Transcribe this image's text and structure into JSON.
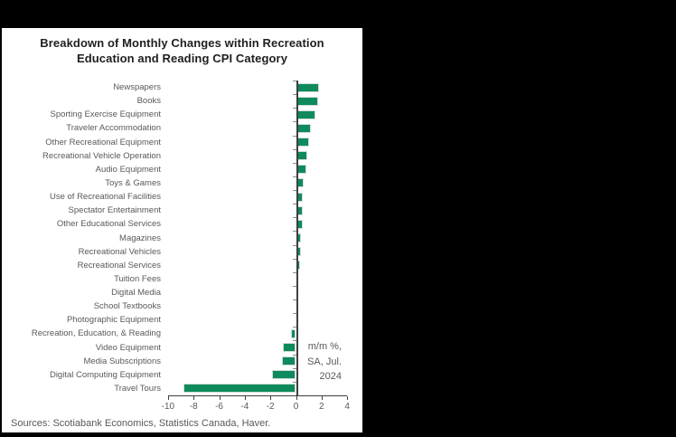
{
  "window": {
    "background_color": "#000000",
    "panel_color": "#ffffff"
  },
  "title": {
    "line1": "Breakdown of Monthly Changes within Recreation",
    "line2": "Education and Reading CPI Category"
  },
  "annotation": {
    "line1": "m/m %,",
    "line2": "SA, Jul.",
    "line3": "2024"
  },
  "source": "Sources: Scotiabank Economics, Statistics Canada, Haver.",
  "colors": {
    "bar": "#0f8a5c",
    "axis": "#3f3f3f",
    "boundary_tick": "#8c8c8c",
    "label_text": "#595959",
    "title_text": "#1f1f1f"
  },
  "chart_data": {
    "type": "bar",
    "orientation": "horizontal",
    "title": "Breakdown of Monthly Changes within Recreation Education and Reading CPI Category",
    "unit_note": "m/m %, SA, Jul. 2024",
    "xlabel": "",
    "ylabel": "",
    "xlim": [
      -10,
      4
    ],
    "xticks": [
      -10,
      -8,
      -6,
      -4,
      -2,
      0,
      2,
      4
    ],
    "grid": false,
    "legend": "none",
    "categories": [
      "Newspapers",
      "Books",
      "Sporting Exercise Equipment",
      "Traveler Accommodation",
      "Other Recreational Equipment",
      "Recreational Vehicle Operation",
      "Audio Equipment",
      "Toys & Games",
      "Use of Recreational Facilities",
      "Spectator Entertainment",
      "Other Educational Services",
      "Magazines",
      "Recreational Vehicles",
      "Recreational Services",
      "Tuition Fees",
      "Digital Media",
      "School Textbooks",
      "Photographic Equipment",
      "Recreation, Education, & Reading",
      "Video Equipment",
      "Media Subscriptions",
      "Digital Computing Equipment",
      "Travel Tours"
    ],
    "values": [
      1.8,
      1.7,
      1.5,
      1.2,
      1.0,
      0.9,
      0.8,
      0.6,
      0.5,
      0.5,
      0.5,
      0.4,
      0.4,
      0.3,
      0.2,
      0.2,
      0.1,
      0.1,
      -0.4,
      -1.0,
      -1.1,
      -1.9,
      -8.8
    ]
  }
}
